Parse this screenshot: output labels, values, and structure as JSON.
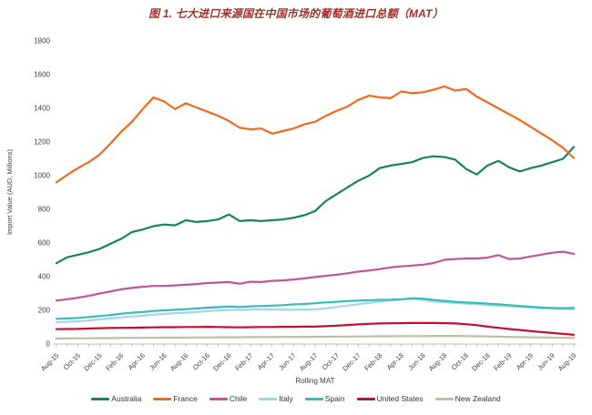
{
  "title": {
    "text": "图 1. 七大进口来源国在中国市场的葡萄酒进口总额（MAT）",
    "color": "#9E302A"
  },
  "axis": {
    "ylabel": "Import Value (AUD, Millions)",
    "xlabel": "Rolling MAT",
    "text_color": "#3F3F3F",
    "line_color": "#BFBFBF"
  },
  "chart_data": {
    "type": "line",
    "title": "图 1. 七大进口来源国在中国市场的葡萄酒进口总额（MAT）",
    "xlabel": "Rolling MAT",
    "ylabel": "Import Value (AUD, Millions)",
    "ylim": [
      0,
      1800
    ],
    "y_ticks": [
      0,
      200,
      400,
      600,
      800,
      1000,
      1200,
      1400,
      1600,
      1800
    ],
    "grid": false,
    "legend_position": "bottom",
    "x_tick_label_every": 2,
    "categories": [
      "Aug-15",
      "Sep-15",
      "Oct-15",
      "Nov-15",
      "Dec-15",
      "Jan-16",
      "Feb-16",
      "Mar-16",
      "Apr-16",
      "May-16",
      "Jun-16",
      "Jul-16",
      "Aug-16",
      "Sep-16",
      "Oct-16",
      "Nov-16",
      "Dec-16",
      "Jan-17",
      "Feb-17",
      "Mar-17",
      "Apr-17",
      "May-17",
      "Jun-17",
      "Jul-17",
      "Aug-17",
      "Sep-17",
      "Oct-17",
      "Nov-17",
      "Dec-17",
      "Jan-18",
      "Feb-18",
      "Mar-18",
      "Apr-18",
      "May-18",
      "Jun-18",
      "Jul-18",
      "Aug-18",
      "Sep-18",
      "Oct-18",
      "Nov-18",
      "Dec-18",
      "Jan-19",
      "Feb-19",
      "Mar-19",
      "Apr-19",
      "May-19",
      "Jun-19",
      "Jul-19",
      "Aug-19"
    ],
    "series": [
      {
        "name": "Australia",
        "color": "#17855A",
        "values": [
          480,
          515,
          530,
          545,
          565,
          595,
          625,
          665,
          680,
          700,
          710,
          705,
          735,
          725,
          730,
          740,
          770,
          730,
          735,
          730,
          735,
          740,
          750,
          765,
          790,
          850,
          890,
          930,
          970,
          1000,
          1045,
          1060,
          1070,
          1080,
          1105,
          1115,
          1110,
          1095,
          1040,
          1007,
          1060,
          1088,
          1050,
          1025,
          1045,
          1060,
          1080,
          1100,
          1170
        ]
      },
      {
        "name": "France",
        "color": "#F2691E",
        "values": [
          960,
          1005,
          1045,
          1080,
          1125,
          1190,
          1260,
          1320,
          1395,
          1465,
          1440,
          1395,
          1430,
          1405,
          1380,
          1355,
          1325,
          1285,
          1275,
          1280,
          1250,
          1265,
          1280,
          1305,
          1320,
          1355,
          1385,
          1410,
          1450,
          1475,
          1465,
          1460,
          1500,
          1490,
          1495,
          1510,
          1530,
          1505,
          1515,
          1470,
          1435,
          1400,
          1365,
          1330,
          1290,
          1250,
          1210,
          1165,
          1105
        ]
      },
      {
        "name": "Chile",
        "color": "#C0549E",
        "values": [
          258,
          266,
          275,
          286,
          300,
          312,
          325,
          333,
          340,
          345,
          345,
          348,
          352,
          356,
          362,
          365,
          368,
          358,
          370,
          368,
          375,
          378,
          383,
          390,
          398,
          405,
          412,
          420,
          430,
          436,
          445,
          455,
          461,
          466,
          471,
          481,
          500,
          505,
          508,
          508,
          513,
          528,
          505,
          508,
          520,
          531,
          542,
          548,
          535
        ]
      },
      {
        "name": "Italy",
        "color": "#A6D4E8",
        "values": [
          130,
          132,
          135,
          140,
          146,
          152,
          158,
          163,
          168,
          174,
          179,
          183,
          186,
          190,
          195,
          199,
          202,
          203,
          205,
          206,
          205,
          204,
          204,
          205,
          206,
          212,
          220,
          228,
          237,
          244,
          252,
          258,
          265,
          268,
          262,
          252,
          248,
          244,
          240,
          236,
          231,
          227,
          223,
          220,
          216,
          213,
          210,
          208,
          206
        ]
      },
      {
        "name": "Spain",
        "color": "#38BCBB",
        "values": [
          150,
          152,
          155,
          160,
          166,
          172,
          180,
          186,
          190,
          196,
          200,
          203,
          207,
          211,
          216,
          219,
          222,
          220,
          224,
          226,
          228,
          231,
          235,
          238,
          242,
          247,
          251,
          255,
          258,
          260,
          262,
          263,
          266,
          272,
          270,
          262,
          256,
          251,
          247,
          244,
          240,
          236,
          231,
          226,
          221,
          217,
          214,
          213,
          215
        ]
      },
      {
        "name": "United States",
        "color": "#C60D2F",
        "values": [
          88,
          89,
          90,
          92,
          94,
          95,
          96,
          97,
          98,
          99,
          100,
          100,
          101,
          101,
          102,
          101,
          100,
          99,
          100,
          101,
          101,
          102,
          102,
          103,
          103,
          106,
          109,
          113,
          117,
          120,
          122,
          123,
          124,
          125,
          125,
          125,
          124,
          122,
          118,
          112,
          103,
          96,
          89,
          83,
          77,
          71,
          66,
          60,
          55
        ]
      },
      {
        "name": "New Zealand",
        "color": "#C4BBA3",
        "values": [
          33,
          33,
          34,
          34,
          35,
          35,
          36,
          36,
          37,
          37,
          38,
          38,
          38,
          39,
          39,
          40,
          40,
          40,
          41,
          41,
          41,
          42,
          42,
          42,
          43,
          43,
          44,
          44,
          45,
          45,
          46,
          46,
          47,
          47,
          47,
          48,
          48,
          48,
          47,
          46,
          45,
          44,
          42,
          41,
          40,
          39,
          38,
          37,
          36
        ]
      }
    ]
  }
}
